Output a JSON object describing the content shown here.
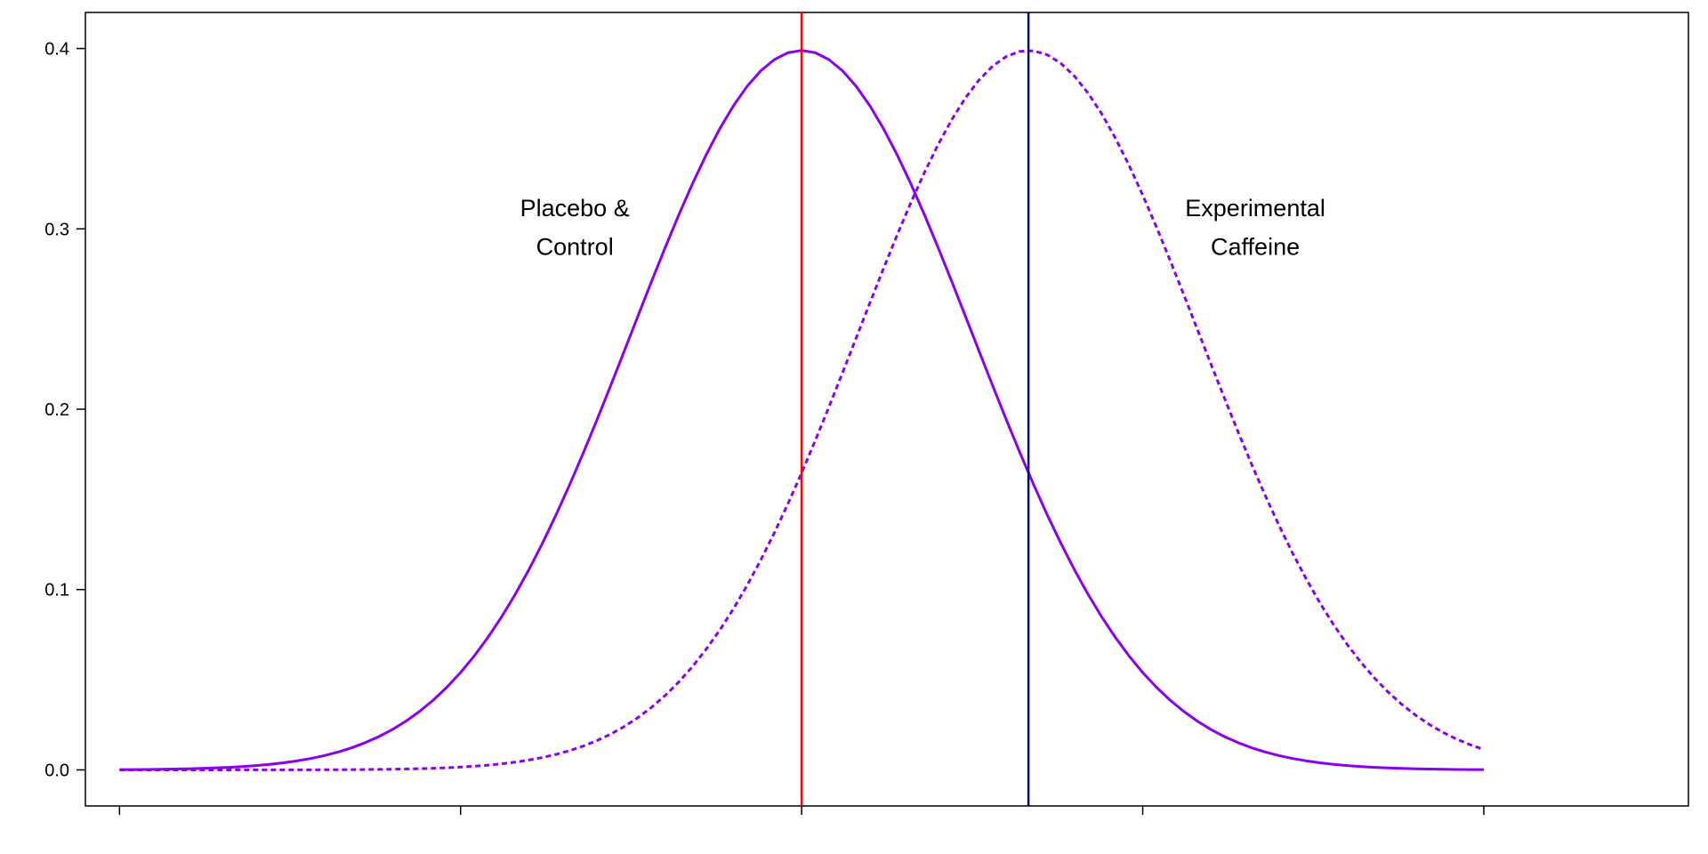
{
  "chart_data": {
    "type": "line",
    "title": "",
    "xlabel": "",
    "ylabel": "",
    "xlim": [
      -4.2,
      5.2
    ],
    "ylim": [
      -0.02,
      0.42
    ],
    "x_ticks": [
      -4,
      -2,
      0,
      2,
      4
    ],
    "x_tick_labels_shown": false,
    "y_ticks": [
      0.0,
      0.1,
      0.2,
      0.3,
      0.4
    ],
    "y_tick_labels": [
      "0.0",
      "0.1",
      "0.2",
      "0.3",
      "0.4"
    ],
    "grid": false,
    "series": [
      {
        "distribution": "normal",
        "mean": 0,
        "sd": 1,
        "x_range": [
          -4,
          4
        ],
        "line_style": "solid",
        "color": "#8B00EE"
      },
      {
        "distribution": "normal",
        "mean": 1.33,
        "sd": 1,
        "x_range": [
          -4,
          4
        ],
        "line_style": "dotted",
        "color": "#8B00EE"
      }
    ],
    "vertical_lines": [
      {
        "x": 0,
        "color": "#FF0000"
      },
      {
        "x": 1.33,
        "color": "#00008B"
      }
    ],
    "annotations": [
      {
        "lines": [
          "Placebo &",
          "Control"
        ],
        "x": -1.33,
        "y": 0.305
      },
      {
        "lines": [
          "Experimental",
          "Caffeine"
        ],
        "x": 2.66,
        "y": 0.305
      }
    ]
  }
}
